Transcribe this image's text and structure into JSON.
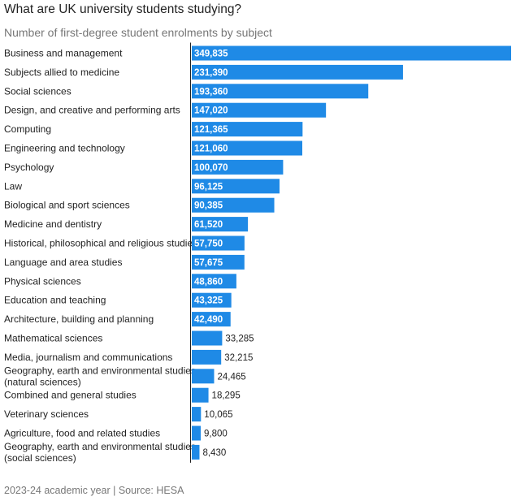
{
  "header": {
    "title": "What are UK university students studying?",
    "subtitle": "Number of first-degree student enrolments by subject"
  },
  "footer": {
    "note": "2023-24 academic year | Source: HESA"
  },
  "colors": {
    "bar": "#1f8ae6",
    "axis": "#222222"
  },
  "chart_data": {
    "type": "bar",
    "orientation": "horizontal",
    "title": "What are UK university students studying?",
    "subtitle": "Number of first-degree student enrolments by subject",
    "xlabel": "",
    "ylabel": "",
    "xlim": [
      0,
      349835
    ],
    "grid": false,
    "legend": "none",
    "categories": [
      [
        "Business and management"
      ],
      [
        "Subjects allied to medicine"
      ],
      [
        "Social sciences"
      ],
      [
        "Design, and creative and performing arts"
      ],
      [
        "Computing"
      ],
      [
        "Engineering and technology"
      ],
      [
        "Psychology"
      ],
      [
        "Law"
      ],
      [
        "Biological and sport sciences"
      ],
      [
        "Medicine and dentistry"
      ],
      [
        "Historical, philosophical and religious studies"
      ],
      [
        "Language and area studies"
      ],
      [
        "Physical sciences"
      ],
      [
        "Education and teaching"
      ],
      [
        "Architecture, building and planning"
      ],
      [
        "Mathematical sciences"
      ],
      [
        "Media, journalism and communications"
      ],
      [
        "Geography, earth and environmental studies",
        "(natural sciences)"
      ],
      [
        "Combined and general studies"
      ],
      [
        "Veterinary sciences"
      ],
      [
        "Agriculture, food and related studies"
      ],
      [
        "Geography, earth and environmental studies",
        "(social sciences)"
      ]
    ],
    "values": [
      349835,
      231390,
      193360,
      147020,
      121365,
      121060,
      100070,
      96125,
      90385,
      61520,
      57750,
      57675,
      48860,
      43325,
      42490,
      33285,
      32215,
      24465,
      18295,
      10065,
      9800,
      8430
    ],
    "value_labels": [
      "349,835",
      "231,390",
      "193,360",
      "147,020",
      "121,365",
      "121,060",
      "100,070",
      "96,125",
      "90,385",
      "61,520",
      "57,750",
      "57,675",
      "48,860",
      "43,325",
      "42,490",
      "33,285",
      "32,215",
      "24,465",
      "18,295",
      "10,065",
      "9,800",
      "8,430"
    ]
  }
}
